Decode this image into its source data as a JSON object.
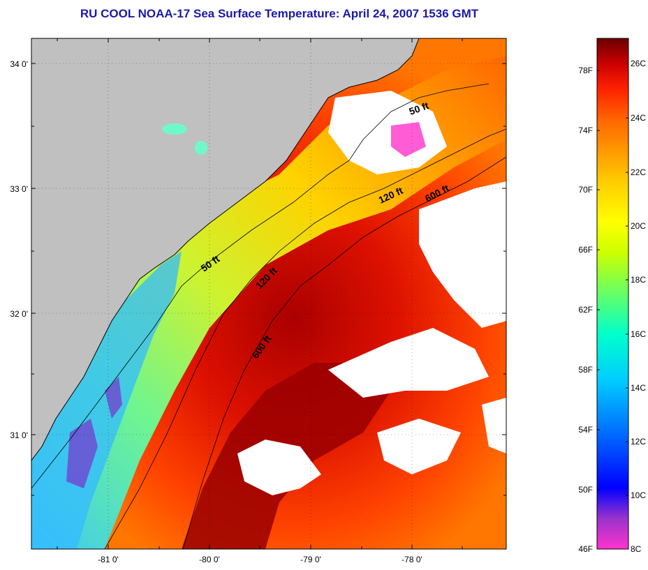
{
  "title": "RU COOL  NOAA-17  Sea Surface Temperature:  April 24, 2007 1536 GMT",
  "map": {
    "lat_labels": [
      "34 0'",
      "33 0'",
      "32 0'",
      "31 0'"
    ],
    "lon_labels": [
      "-81 0'",
      "-80 0'",
      "-79 0'",
      "-78 0'"
    ],
    "contour_labels": [
      "50 ft",
      "120 ft",
      "600 ft",
      "50 ft",
      "120 ft",
      "600 ft"
    ],
    "colors": {
      "land": "#c0c0c0",
      "cloud": "#ffffff",
      "frame": "#000000"
    }
  },
  "colorbar": {
    "fahrenheit_labels": [
      "78F",
      "74F",
      "70F",
      "66F",
      "62F",
      "58F",
      "54F",
      "50F",
      "46F"
    ],
    "celsius_labels": [
      "26C",
      "24C",
      "22C",
      "20C",
      "18C",
      "16C",
      "14C",
      "12C",
      "10C",
      "8C"
    ],
    "colors": [
      "#ff33cc",
      "#9933cc",
      "#0000ff",
      "#0066ff",
      "#00ccff",
      "#00ffcc",
      "#66ff66",
      "#ccff00",
      "#ffff00",
      "#ffcc00",
      "#ff9900",
      "#ff6600",
      "#ff2200",
      "#dd0000",
      "#990000",
      "#6a0000"
    ]
  }
}
